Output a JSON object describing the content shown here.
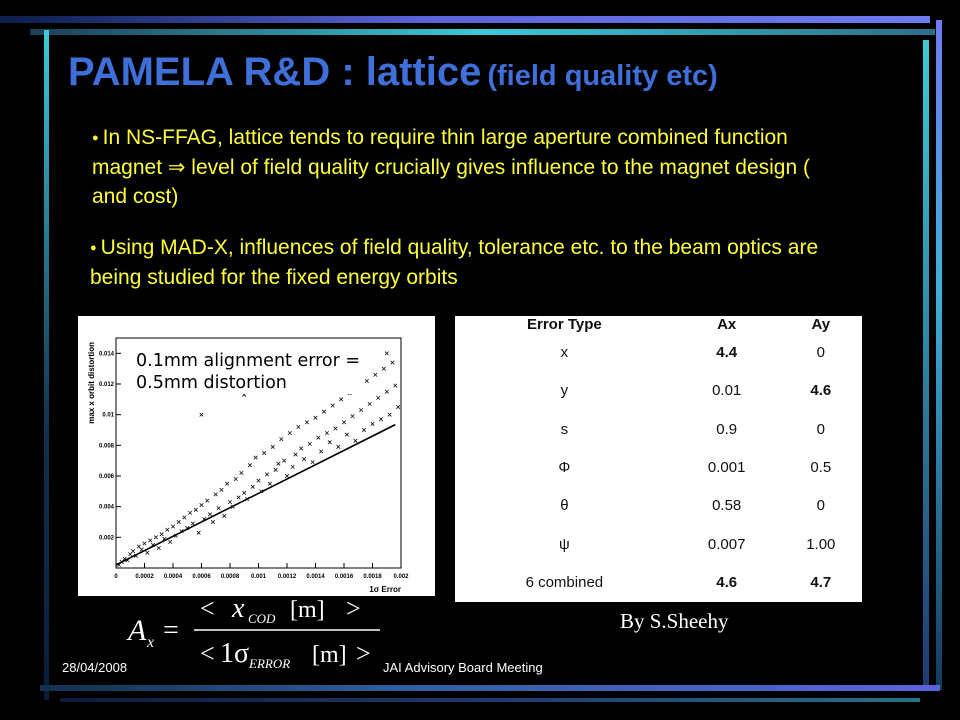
{
  "slide": {
    "title_main": "PAMELA R&D : lattice",
    "title_sub": "(field quality etc)",
    "bullet1": "In NS-FFAG, lattice tends to require thin large aperture combined function magnet ⇒ level of field quality crucially gives influence to the magnet design ( and cost)",
    "bullet2": "Using MAD-X, influences of field quality, tolerance etc. to the beam optics are being studied for the fixed energy orbits",
    "annotation_line1": "0.1mm alignment error =",
    "annotation_line2": "0.5mm distortion",
    "credit": "By S.Sheehy",
    "footer_date": "28/04/2008",
    "footer_event": "JAI Advisory Board Meeting",
    "formula": {
      "lhs": "A",
      "lhs_sub": "x",
      "num_var": "x",
      "num_sub": "COD",
      "num_unit": "[m]",
      "den_val": "1σ",
      "den_sub": "ERROR",
      "den_unit": "[m]"
    }
  },
  "table": {
    "headers": [
      "Error Type",
      "Ax",
      "Ay"
    ],
    "rows": [
      [
        "x",
        "4.4",
        "0"
      ],
      [
        "y",
        "0.01",
        "4.6"
      ],
      [
        "s",
        "0.9",
        "0"
      ],
      [
        "Φ",
        "0.001",
        "0.5"
      ],
      [
        "θ",
        "0.58",
        "0"
      ],
      [
        "ψ",
        "0.007",
        "1.00"
      ],
      [
        "6 combined",
        "4.6",
        "4.7"
      ]
    ],
    "bold_cells": [
      [
        0,
        1
      ],
      [
        1,
        2
      ],
      [
        6,
        1
      ],
      [
        6,
        2
      ]
    ]
  },
  "chart_data": {
    "type": "scatter",
    "title": "",
    "xlabel": "1σ Error",
    "ylabel": "max x orbit distortion",
    "xlim": [
      0,
      0.002
    ],
    "ylim": [
      0,
      0.015
    ],
    "x_ticks": [
      "0",
      "0.0002",
      "0.0004",
      "0.0006",
      "0.0008",
      "0.001",
      "0.0012",
      "0.0014",
      "0.0016",
      "0.0018",
      "0.002"
    ],
    "y_ticks": [
      "0.002",
      "0.004",
      "0.006",
      "0.008",
      "0.01",
      "0.012",
      "0.014"
    ],
    "fit_line": {
      "x": [
        0,
        0.00196
      ],
      "y": [
        0.0002,
        0.00935
      ]
    },
    "points": [
      [
        2e-05,
        0.0002
      ],
      [
        4e-05,
        0.0004
      ],
      [
        6e-05,
        0.0006
      ],
      [
        8e-05,
        0.0005
      ],
      [
        0.0001,
        0.0009
      ],
      [
        0.00012,
        0.0011
      ],
      [
        0.00014,
        0.0008
      ],
      [
        0.00016,
        0.0014
      ],
      [
        0.00018,
        0.0012
      ],
      [
        0.0002,
        0.0016
      ],
      [
        0.00022,
        0.001
      ],
      [
        0.00024,
        0.0018
      ],
      [
        0.00026,
        0.0015
      ],
      [
        0.00028,
        0.002
      ],
      [
        0.0003,
        0.0013
      ],
      [
        0.00032,
        0.0022
      ],
      [
        0.00034,
        0.0019
      ],
      [
        0.00036,
        0.0025
      ],
      [
        0.00038,
        0.0017
      ],
      [
        0.0004,
        0.0027
      ],
      [
        0.00042,
        0.0021
      ],
      [
        0.00044,
        0.003
      ],
      [
        0.00046,
        0.0024
      ],
      [
        0.00048,
        0.0033
      ],
      [
        0.0005,
        0.0026
      ],
      [
        0.00052,
        0.0036
      ],
      [
        0.00054,
        0.0029
      ],
      [
        0.00056,
        0.0038
      ],
      [
        0.00058,
        0.0023
      ],
      [
        0.0006,
        0.0041
      ],
      [
        0.00062,
        0.0032
      ],
      [
        0.00064,
        0.0044
      ],
      [
        0.00066,
        0.0035
      ],
      [
        0.00068,
        0.003
      ],
      [
        0.0007,
        0.0048
      ],
      [
        0.00072,
        0.0039
      ],
      [
        0.00074,
        0.0051
      ],
      [
        0.00076,
        0.0034
      ],
      [
        0.00078,
        0.0055
      ],
      [
        0.0008,
        0.0043
      ],
      [
        0.00082,
        0.004
      ],
      [
        0.00084,
        0.0058
      ],
      [
        0.00086,
        0.0046
      ],
      [
        0.00088,
        0.0062
      ],
      [
        0.0009,
        0.0049
      ],
      [
        0.00092,
        0.0045
      ],
      [
        0.00094,
        0.0067
      ],
      [
        0.00096,
        0.0053
      ],
      [
        0.00098,
        0.0072
      ],
      [
        0.001,
        0.0057
      ],
      [
        0.00102,
        0.005
      ],
      [
        0.00104,
        0.0075
      ],
      [
        0.00106,
        0.0061
      ],
      [
        0.00108,
        0.0055
      ],
      [
        0.0011,
        0.0079
      ],
      [
        0.00112,
        0.0064
      ],
      [
        0.00114,
        0.0068
      ],
      [
        0.00116,
        0.0084
      ],
      [
        0.00118,
        0.007
      ],
      [
        0.0012,
        0.006
      ],
      [
        0.00122,
        0.0088
      ],
      [
        0.00124,
        0.0066
      ],
      [
        0.00126,
        0.0074
      ],
      [
        0.00128,
        0.0092
      ],
      [
        0.0013,
        0.0078
      ],
      [
        0.00132,
        0.0071
      ],
      [
        0.00134,
        0.0095
      ],
      [
        0.00136,
        0.0081
      ],
      [
        0.00138,
        0.0069
      ],
      [
        0.0014,
        0.0098
      ],
      [
        0.00142,
        0.0085
      ],
      [
        0.00144,
        0.0076
      ],
      [
        0.00146,
        0.0102
      ],
      [
        0.00148,
        0.0088
      ],
      [
        0.0015,
        0.0082
      ],
      [
        0.00152,
        0.0106
      ],
      [
        0.00154,
        0.0091
      ],
      [
        0.00156,
        0.0079
      ],
      [
        0.00158,
        0.011
      ],
      [
        0.0016,
        0.0095
      ],
      [
        0.00162,
        0.0087
      ],
      [
        0.00164,
        0.0114
      ],
      [
        0.00166,
        0.0099
      ],
      [
        0.00168,
        0.0083
      ],
      [
        0.0017,
        0.0118
      ],
      [
        0.00172,
        0.0103
      ],
      [
        0.00174,
        0.009
      ],
      [
        0.00176,
        0.0122
      ],
      [
        0.00178,
        0.0107
      ],
      [
        0.0018,
        0.0094
      ],
      [
        0.00182,
        0.0126
      ],
      [
        0.00184,
        0.0111
      ],
      [
        0.00186,
        0.0097
      ],
      [
        0.00188,
        0.013
      ],
      [
        0.0019,
        0.0115
      ],
      [
        0.00192,
        0.01
      ],
      [
        0.00194,
        0.0134
      ],
      [
        0.00196,
        0.0119
      ],
      [
        0.00198,
        0.0105
      ],
      [
        0.0019,
        0.014
      ],
      [
        0.0017,
        0.0136
      ],
      [
        0.0012,
        0.0123
      ],
      [
        0.0006,
        0.01
      ],
      [
        0.0009,
        0.0113
      ],
      [
        0.0015,
        0.0132
      ]
    ]
  },
  "colors": {
    "background": "#000000",
    "title": "#3f6fd8",
    "bullet_text": "#ffff3a",
    "frame_blue": "#5b63d8",
    "frame_cyan": "#3ec9d6",
    "frame_dark": "#1f3a6e"
  }
}
